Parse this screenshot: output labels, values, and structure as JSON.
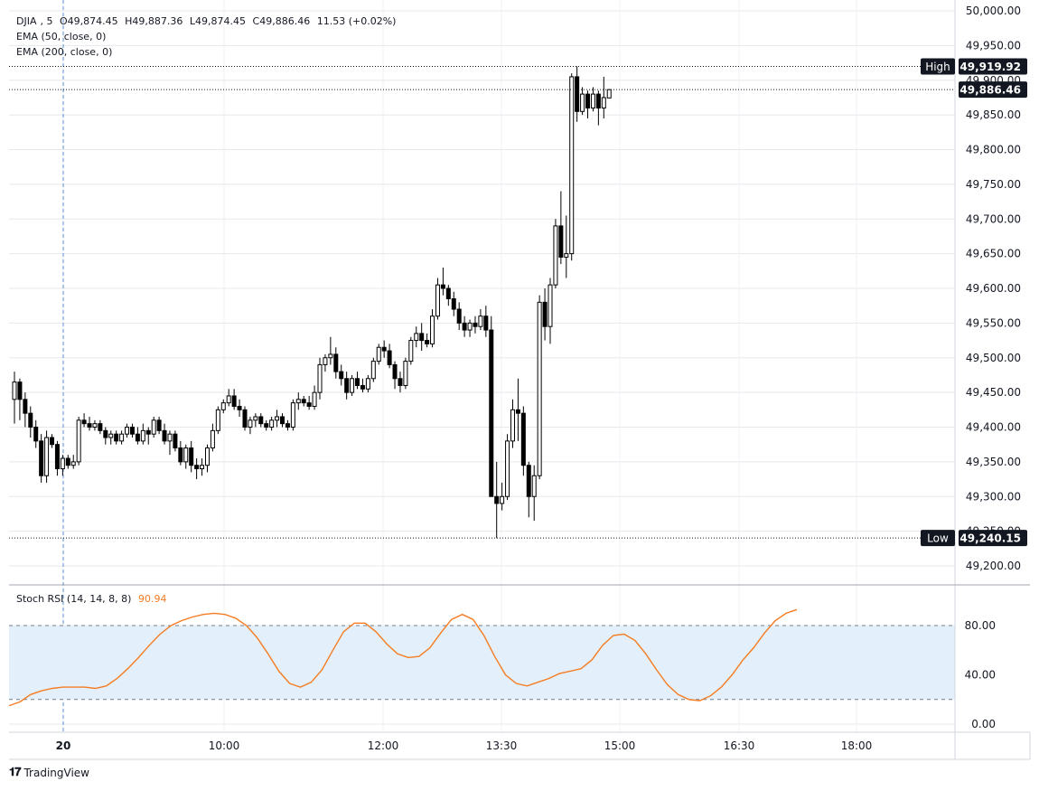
{
  "legend": {
    "symbol": "DJIA",
    "interval": "5",
    "open": "O49,874.45",
    "high": "H49,887.36",
    "low": "L49,874.45",
    "close": "C49,886.46",
    "change": "11.53 (+0.02%)",
    "ema50": "EMA (50, close, 0)",
    "ema200": "EMA (200, close, 0)"
  },
  "price_markers": {
    "high_label": "High",
    "high_value": "49,919.92",
    "current_value": "49,886.46",
    "low_label": "Low",
    "low_value": "49,240.15"
  },
  "indicator": {
    "label": "Stoch RSI (14, 14, 8, 8)",
    "value": "90.94",
    "color": "#f57c22",
    "band_color": "#e3f0fb"
  },
  "brand": {
    "name": "TradingView"
  },
  "chart_data": [
    {
      "type": "candlestick",
      "title": "",
      "ylim": [
        49170,
        50010
      ],
      "y_ticks": [
        "49,200.00",
        "49,250.00",
        "49,300.00",
        "49,350.00",
        "49,400.00",
        "49,450.00",
        "49,500.00",
        "49,550.00",
        "49,600.00",
        "49,650.00",
        "49,700.00",
        "49,750.00",
        "49,800.00",
        "49,850.00",
        "49,900.00",
        "49,950.00",
        "50,000.00"
      ],
      "x_ticks": [
        "20",
        "10:00",
        "12:00",
        "13:30",
        "15:00",
        "16:30",
        "18:00"
      ],
      "grid": true,
      "up_color": "#ffffff",
      "down_color": "#000000",
      "candles": [
        [
          49440,
          49480,
          49405,
          49465
        ],
        [
          49465,
          49470,
          49410,
          49440
        ],
        [
          49440,
          49450,
          49400,
          49420
        ],
        [
          49420,
          49430,
          49385,
          49400
        ],
        [
          49400,
          49410,
          49370,
          49380
        ],
        [
          49380,
          49390,
          49320,
          49330
        ],
        [
          49330,
          49395,
          49320,
          49385
        ],
        [
          49385,
          49390,
          49370,
          49375
        ],
        [
          49375,
          49380,
          49330,
          49340
        ],
        [
          49340,
          49360,
          49330,
          49355
        ],
        [
          49355,
          49360,
          49340,
          49345
        ],
        [
          49345,
          49360,
          49340,
          49350
        ],
        [
          49350,
          49415,
          49345,
          49410
        ],
        [
          49410,
          49420,
          49400,
          49405
        ],
        [
          49405,
          49415,
          49395,
          49400
        ],
        [
          49400,
          49410,
          49395,
          49405
        ],
        [
          49405,
          49410,
          49390,
          49395
        ],
        [
          49395,
          49400,
          49375,
          49385
        ],
        [
          49385,
          49395,
          49375,
          49390
        ],
        [
          49390,
          49395,
          49375,
          49380
        ],
        [
          49380,
          49395,
          49375,
          49390
        ],
        [
          49390,
          49405,
          49385,
          49400
        ],
        [
          49400,
          49405,
          49385,
          49390
        ],
        [
          49390,
          49400,
          49375,
          49380
        ],
        [
          49380,
          49405,
          49375,
          49395
        ],
        [
          49395,
          49400,
          49375,
          49390
        ],
        [
          49390,
          49415,
          49385,
          49410
        ],
        [
          49410,
          49415,
          49390,
          49395
        ],
        [
          49395,
          49405,
          49375,
          49380
        ],
        [
          49380,
          49395,
          49360,
          49390
        ],
        [
          49390,
          49395,
          49365,
          49370
        ],
        [
          49370,
          49380,
          49345,
          49350
        ],
        [
          49350,
          49375,
          49340,
          49370
        ],
        [
          49370,
          49380,
          49335,
          49345
        ],
        [
          49345,
          49355,
          49325,
          49340
        ],
        [
          49340,
          49355,
          49330,
          49345
        ],
        [
          49345,
          49375,
          49335,
          49370
        ],
        [
          49370,
          49405,
          49365,
          49395
        ],
        [
          49395,
          49430,
          49390,
          49425
        ],
        [
          49425,
          49440,
          49420,
          49435
        ],
        [
          49435,
          49455,
          49430,
          49445
        ],
        [
          49445,
          49455,
          49425,
          49430
        ],
        [
          49430,
          49440,
          49415,
          49425
        ],
        [
          49425,
          49430,
          49395,
          49400
        ],
        [
          49400,
          49415,
          49390,
          49410
        ],
        [
          49410,
          49420,
          49400,
          49415
        ],
        [
          49415,
          49420,
          49400,
          49405
        ],
        [
          49405,
          49410,
          49395,
          49400
        ],
        [
          49400,
          49415,
          49395,
          49410
        ],
        [
          49410,
          49425,
          49400,
          49415
        ],
        [
          49415,
          49420,
          49400,
          49405
        ],
        [
          49405,
          49410,
          49395,
          49400
        ],
        [
          49400,
          49440,
          49395,
          49435
        ],
        [
          49435,
          49450,
          49425,
          49440
        ],
        [
          49440,
          49445,
          49430,
          49435
        ],
        [
          49435,
          49445,
          49425,
          49430
        ],
        [
          49430,
          49460,
          49425,
          49450
        ],
        [
          49450,
          49500,
          49440,
          49490
        ],
        [
          49490,
          49505,
          49480,
          49500
        ],
        [
          49500,
          49530,
          49490,
          49505
        ],
        [
          49505,
          49515,
          49470,
          49480
        ],
        [
          49480,
          49490,
          49460,
          49470
        ],
        [
          49470,
          49480,
          49440,
          49450
        ],
        [
          49450,
          49475,
          49445,
          49470
        ],
        [
          49470,
          49480,
          49455,
          49460
        ],
        [
          49460,
          49470,
          49450,
          49455
        ],
        [
          49455,
          49475,
          49450,
          49470
        ],
        [
          49470,
          49500,
          49465,
          49495
        ],
        [
          49495,
          49520,
          49490,
          49515
        ],
        [
          49515,
          49525,
          49500,
          49510
        ],
        [
          49510,
          49520,
          49485,
          49490
        ],
        [
          49490,
          49495,
          49455,
          49470
        ],
        [
          49470,
          49480,
          49450,
          49460
        ],
        [
          49460,
          49500,
          49455,
          49495
        ],
        [
          49495,
          49530,
          49490,
          49525
        ],
        [
          49525,
          49545,
          49515,
          49535
        ],
        [
          49535,
          49550,
          49510,
          49525
        ],
        [
          49525,
          49535,
          49515,
          49520
        ],
        [
          49520,
          49570,
          49515,
          49560
        ],
        [
          49560,
          49615,
          49555,
          49605
        ],
        [
          49605,
          49630,
          49590,
          49600
        ],
        [
          49600,
          49605,
          49575,
          49585
        ],
        [
          49585,
          49595,
          49560,
          49570
        ],
        [
          49570,
          49580,
          49540,
          49550
        ],
        [
          49550,
          49560,
          49530,
          49540
        ],
        [
          49540,
          49555,
          49530,
          49550
        ],
        [
          49550,
          49560,
          49535,
          49545
        ],
        [
          49545,
          49570,
          49540,
          49560
        ],
        [
          49560,
          49575,
          49530,
          49540
        ],
        [
          49540,
          49560,
          49300,
          49300
        ],
        [
          49300,
          49350,
          49240,
          49290
        ],
        [
          49290,
          49320,
          49280,
          49300
        ],
        [
          49300,
          49390,
          49295,
          49380
        ],
        [
          49380,
          49440,
          49370,
          49425
        ],
        [
          49425,
          49470,
          49380,
          49420
        ],
        [
          49420,
          49430,
          49330,
          49345
        ],
        [
          49345,
          49350,
          49270,
          49300
        ],
        [
          49300,
          49345,
          49265,
          49330
        ],
        [
          49330,
          49590,
          49325,
          49580
        ],
        [
          49580,
          49600,
          49525,
          49545
        ],
        [
          49545,
          49615,
          49520,
          49605
        ],
        [
          49605,
          49700,
          49600,
          49690
        ],
        [
          49690,
          49740,
          49635,
          49645
        ],
        [
          49645,
          49705,
          49615,
          49650
        ],
        [
          49650,
          49910,
          49640,
          49905
        ],
        [
          49905,
          49920,
          49840,
          49855
        ],
        [
          49855,
          49890,
          49850,
          49880
        ],
        [
          49880,
          49885,
          49845,
          49860
        ],
        [
          49860,
          49890,
          49855,
          49880
        ],
        [
          49880,
          49885,
          49835,
          49860
        ],
        [
          49860,
          49905,
          49845,
          49875
        ],
        [
          49874.45,
          49887.36,
          49874.45,
          49886.46
        ]
      ]
    },
    {
      "type": "line",
      "title": "",
      "ylim": [
        -5,
        115
      ],
      "y_ticks": [
        "0.00",
        "40.00",
        "80.00"
      ],
      "bands": [
        20,
        80
      ],
      "series": [
        {
          "values": [
            15,
            18,
            24,
            27,
            29,
            30,
            30,
            30,
            29,
            31,
            37,
            45,
            54,
            64,
            73,
            80,
            84,
            87,
            89,
            90,
            89,
            86,
            80,
            70,
            57,
            43,
            33,
            30,
            34,
            44,
            60,
            75,
            82,
            82,
            75,
            65,
            57,
            54,
            55,
            62,
            74,
            85,
            89,
            85,
            72,
            55,
            40,
            33,
            31,
            34,
            37,
            41,
            43,
            45,
            52,
            64,
            72,
            73,
            68,
            57,
            44,
            32,
            24,
            20,
            19,
            23,
            30,
            40,
            52,
            62,
            74,
            84,
            90,
            93
          ]
        }
      ]
    }
  ]
}
